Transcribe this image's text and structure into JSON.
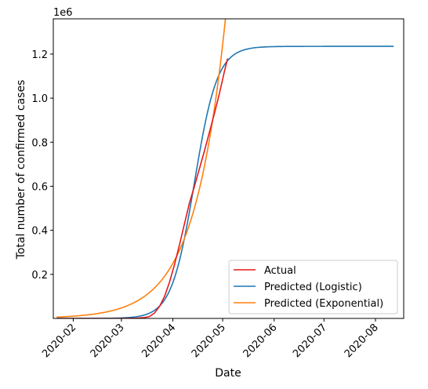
{
  "chart_data": {
    "type": "line",
    "title": "",
    "xlabel": "Date",
    "ylabel": "Total number of confirmed cases",
    "y_offset_label": "1e6",
    "xlim": [
      "2020-01-20",
      "2020-08-18"
    ],
    "ylim": [
      0,
      1.36
    ],
    "x_ticks": [
      "2020-02-01",
      "2020-03-01",
      "2020-04-01",
      "2020-05-01",
      "2020-06-01",
      "2020-07-01",
      "2020-08-01"
    ],
    "x_tick_labels": [
      "2020-02",
      "2020-03",
      "2020-04",
      "2020-05",
      "2020-06",
      "2020-07",
      "2020-08"
    ],
    "y_ticks": [
      0.2,
      0.4,
      0.6,
      0.8,
      1.0,
      1.2
    ],
    "y_tick_labels": [
      "0.2",
      "0.4",
      "0.6",
      "0.8",
      "1.0",
      "1.2"
    ],
    "grid": false,
    "legend_position": "lower right",
    "series": [
      {
        "name": "Actual",
        "color": "#e41a1c",
        "x": [
          "2020-01-22",
          "2020-02-15",
          "2020-03-01",
          "2020-03-10",
          "2020-03-15",
          "2020-03-18",
          "2020-03-21",
          "2020-03-24",
          "2020-03-27",
          "2020-03-30",
          "2020-04-02",
          "2020-04-05",
          "2020-04-08",
          "2020-04-11",
          "2020-04-14",
          "2020-04-17",
          "2020-04-20",
          "2020-04-23",
          "2020-04-26",
          "2020-04-29",
          "2020-05-02",
          "2020-05-04"
        ],
        "y": [
          0.0,
          0.0,
          0.0,
          0.001,
          0.004,
          0.009,
          0.025,
          0.055,
          0.1,
          0.165,
          0.245,
          0.335,
          0.43,
          0.525,
          0.6,
          0.68,
          0.76,
          0.845,
          0.93,
          1.02,
          1.12,
          1.18
        ]
      },
      {
        "name": "Predicted (Logistic)",
        "color": "#1f77b4",
        "model": {
          "kind": "logistic",
          "K": 1.235,
          "midpoint": "2020-04-14",
          "rate_per_day": 0.145
        }
      },
      {
        "name": "Predicted (Exponential)",
        "color": "#ff7f0e",
        "model": {
          "kind": "exponential",
          "anchor_date": "2020-04-01",
          "anchor_value": 0.25,
          "rate_per_day": 0.0535
        }
      }
    ]
  }
}
